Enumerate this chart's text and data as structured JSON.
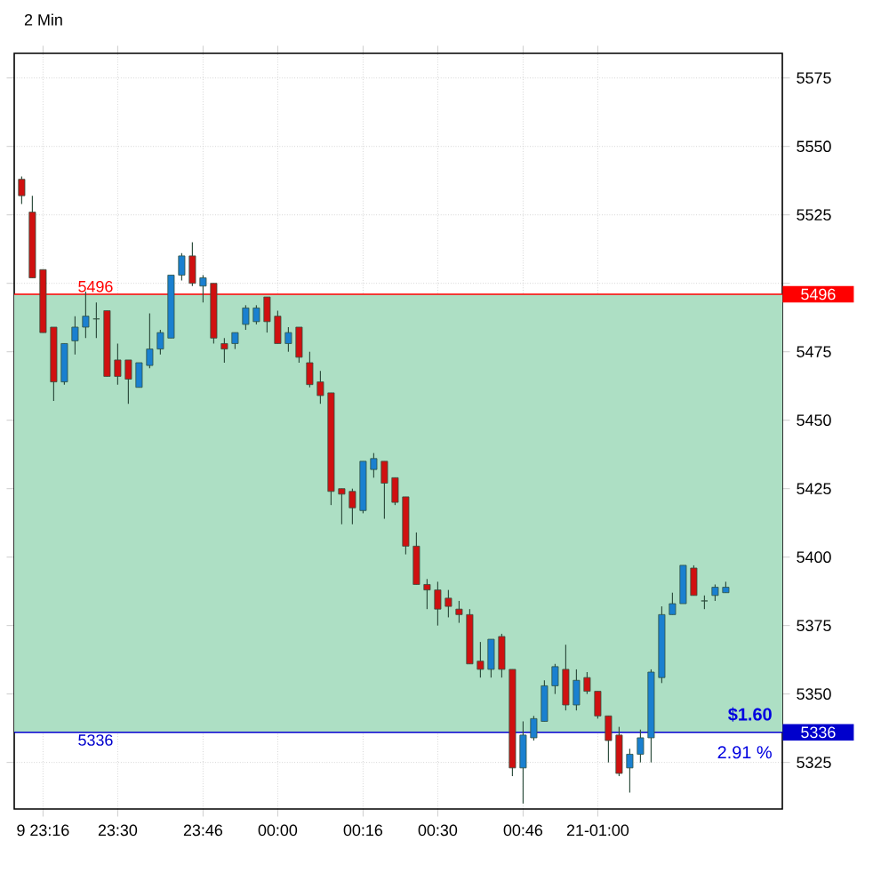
{
  "chart_data": {
    "type": "candlestick",
    "title": "2 Min",
    "categories": [
      null,
      null,
      "9 23:16",
      null,
      null,
      null,
      null,
      null,
      null,
      "23:30",
      null,
      null,
      null,
      null,
      null,
      null,
      null,
      "23:46",
      null,
      null,
      null,
      null,
      null,
      null,
      "00:00",
      null,
      null,
      null,
      null,
      null,
      null,
      null,
      "00:16",
      null,
      null,
      null,
      null,
      null,
      null,
      "00:30",
      null,
      null,
      null,
      null,
      null,
      null,
      null,
      "00:46",
      null,
      null,
      null,
      null,
      null,
      null,
      "21-01:00",
      null,
      null,
      null,
      null,
      null,
      null,
      null,
      null,
      null,
      null,
      null,
      null
    ],
    "ohlc": [
      [
        5538,
        5539,
        5529,
        5532
      ],
      [
        5526,
        5532,
        5502,
        5502
      ],
      [
        5505,
        5505,
        5482,
        5482
      ],
      [
        5484,
        5484,
        5457,
        5464
      ],
      [
        5464,
        5478,
        5463,
        5478
      ],
      [
        5479,
        5488,
        5474,
        5484
      ],
      [
        5484,
        5497,
        5480,
        5488
      ],
      [
        5487,
        5493,
        5480,
        5487
      ],
      [
        5490,
        5490,
        5466,
        5466
      ],
      [
        5472,
        5478,
        5463,
        5466
      ],
      [
        5472,
        5472,
        5456,
        5465
      ],
      [
        5462,
        5471,
        5462,
        5471
      ],
      [
        5470,
        5489,
        5469,
        5476
      ],
      [
        5476,
        5483,
        5474,
        5482
      ],
      [
        5480,
        5503,
        5480,
        5503
      ],
      [
        5503,
        5511,
        5501,
        5510
      ],
      [
        5510,
        5515,
        5499,
        5500
      ],
      [
        5499,
        5503,
        5493,
        5502
      ],
      [
        5500,
        5500,
        5478,
        5480
      ],
      [
        5478,
        5480,
        5471,
        5476
      ],
      [
        5478,
        5482,
        5476,
        5482
      ],
      [
        5485,
        5492,
        5483,
        5491
      ],
      [
        5486,
        5492,
        5485,
        5491
      ],
      [
        5495,
        5495,
        5482,
        5486
      ],
      [
        5488,
        5490,
        5478,
        5478
      ],
      [
        5478,
        5484,
        5475,
        5482
      ],
      [
        5484,
        5484,
        5471,
        5473
      ],
      [
        5471,
        5475,
        5462,
        5463
      ],
      [
        5464,
        5468,
        5456,
        5459
      ],
      [
        5460,
        5460,
        5419,
        5424
      ],
      [
        5425,
        5425,
        5412,
        5423
      ],
      [
        5424,
        5425,
        5412,
        5418
      ],
      [
        5417,
        5435,
        5416,
        5435
      ],
      [
        5432,
        5438,
        5429,
        5436
      ],
      [
        5435,
        5435,
        5414,
        5427
      ],
      [
        5429,
        5429,
        5419,
        5420
      ],
      [
        5422,
        5422,
        5401,
        5404
      ],
      [
        5404,
        5409,
        5390,
        5390
      ],
      [
        5390,
        5392,
        5381,
        5388
      ],
      [
        5388,
        5391,
        5375,
        5381
      ],
      [
        5385,
        5388,
        5378,
        5382
      ],
      [
        5381,
        5384,
        5376,
        5379
      ],
      [
        5379,
        5381,
        5361,
        5361
      ],
      [
        5362,
        5369,
        5356,
        5359
      ],
      [
        5359,
        5370,
        5356,
        5370
      ],
      [
        5371,
        5372,
        5356,
        5359
      ],
      [
        5359,
        5359,
        5320,
        5323
      ],
      [
        5323,
        5340,
        5310,
        5335
      ],
      [
        5334,
        5342,
        5333,
        5341
      ],
      [
        5340,
        5355,
        5340,
        5353
      ],
      [
        5353,
        5361,
        5350,
        5360
      ],
      [
        5359,
        5368,
        5344,
        5346
      ],
      [
        5346,
        5359,
        5344,
        5355
      ],
      [
        5356,
        5358,
        5350,
        5351
      ],
      [
        5351,
        5351,
        5341,
        5342
      ],
      [
        5342,
        5342,
        5325,
        5333
      ],
      [
        5335,
        5338,
        5320,
        5321
      ],
      [
        5323,
        5330,
        5314,
        5328
      ],
      [
        5328,
        5337,
        5325,
        5334
      ],
      [
        5334,
        5359,
        5325,
        5358
      ],
      [
        5356,
        5382,
        5354,
        5379
      ],
      [
        5379,
        5387,
        5379,
        5383
      ],
      [
        5383,
        5397,
        5383,
        5397
      ],
      [
        5396,
        5397,
        5386,
        5386
      ],
      [
        5384,
        5386,
        5381,
        5384
      ],
      [
        5386,
        5390,
        5384,
        5389
      ],
      [
        5387,
        5391,
        5387,
        5389
      ]
    ],
    "ylim": [
      5308,
      5584
    ],
    "yticks": [
      5325,
      5350,
      5375,
      5400,
      5425,
      5450,
      5475,
      {
        "value": 5500,
        "label": null
      },
      5525,
      5550,
      5575
    ],
    "ref_lines": [
      {
        "axis": "y",
        "value": 5496,
        "label": "5496",
        "color": "#ff0000"
      },
      {
        "axis": "y",
        "value": 5336,
        "label": "5336",
        "color": "#0000cc"
      }
    ],
    "bands": [
      {
        "axis": "y",
        "from": 5336,
        "to": 5496,
        "color": "#addfc4"
      }
    ],
    "annotations": [
      "$1.60",
      "2.91 %"
    ],
    "grid": true
  }
}
